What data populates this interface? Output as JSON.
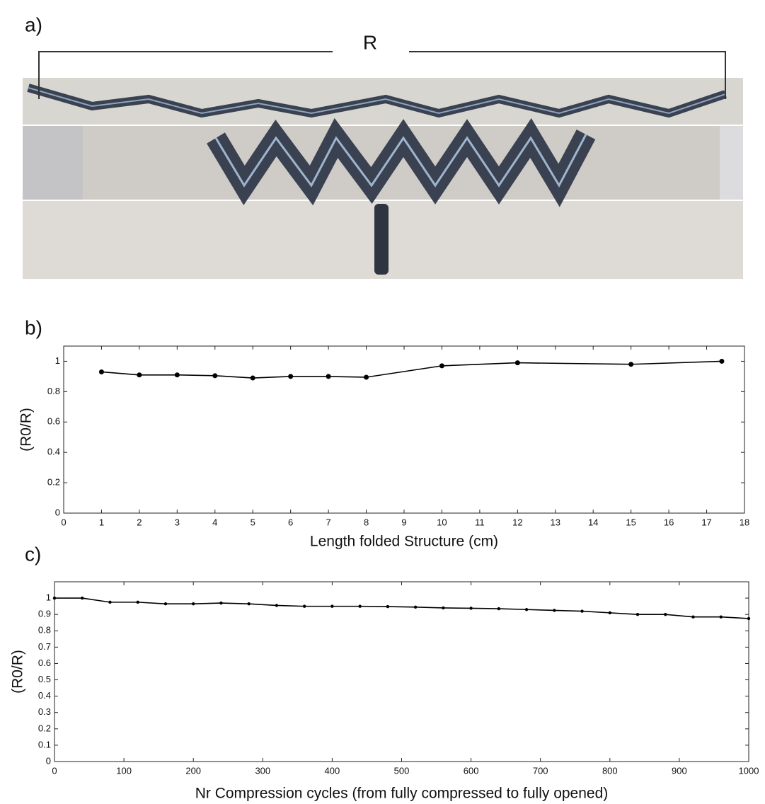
{
  "panel_a": {
    "label": "a)",
    "bracket_label": "R"
  },
  "chart_data": [
    {
      "type": "line",
      "panel_label": "b)",
      "ylabel": "(R0/R)",
      "xlabel": "Length folded Structure (cm)",
      "x": [
        1,
        2,
        3,
        4,
        5,
        6,
        7,
        8,
        10,
        12,
        15,
        17.4
      ],
      "series": [
        {
          "color": "#000000",
          "values": [
            0.93,
            0.91,
            0.91,
            0.905,
            0.89,
            0.9,
            0.9,
            0.895,
            0.97,
            0.99,
            0.98,
            1.0
          ]
        }
      ],
      "xlim": [
        0,
        18
      ],
      "xticks": [
        0,
        1,
        2,
        3,
        4,
        5,
        6,
        7,
        8,
        9,
        10,
        11,
        12,
        13,
        14,
        15,
        16,
        17,
        18
      ],
      "ylim": [
        0,
        1.1
      ],
      "yticks": [
        0,
        0.2,
        0.4,
        0.6,
        0.8,
        1
      ]
    },
    {
      "type": "line",
      "panel_label": "c)",
      "ylabel": "(R0/R)",
      "xlabel": "Nr Compression cycles  (from fully compressed to fully opened)",
      "x": [
        0,
        40,
        80,
        120,
        160,
        200,
        240,
        280,
        320,
        360,
        400,
        440,
        480,
        520,
        560,
        600,
        640,
        680,
        720,
        760,
        800,
        840,
        880,
        920,
        960,
        1000
      ],
      "series": [
        {
          "color": "#000000",
          "values": [
            1,
            1,
            0.975,
            0.975,
            0.965,
            0.965,
            0.97,
            0.965,
            0.955,
            0.95,
            0.95,
            0.95,
            0.948,
            0.945,
            0.94,
            0.938,
            0.935,
            0.93,
            0.925,
            0.92,
            0.91,
            0.9,
            0.9,
            0.885,
            0.885,
            0.875
          ]
        }
      ],
      "xlim": [
        0,
        1000
      ],
      "xticks": [
        0,
        100,
        200,
        300,
        400,
        500,
        600,
        700,
        800,
        900,
        1000
      ],
      "ylim": [
        0,
        1.1
      ],
      "yticks": [
        0,
        0.1,
        0.2,
        0.3,
        0.4,
        0.5,
        0.6,
        0.7,
        0.8,
        0.9,
        1
      ]
    }
  ]
}
